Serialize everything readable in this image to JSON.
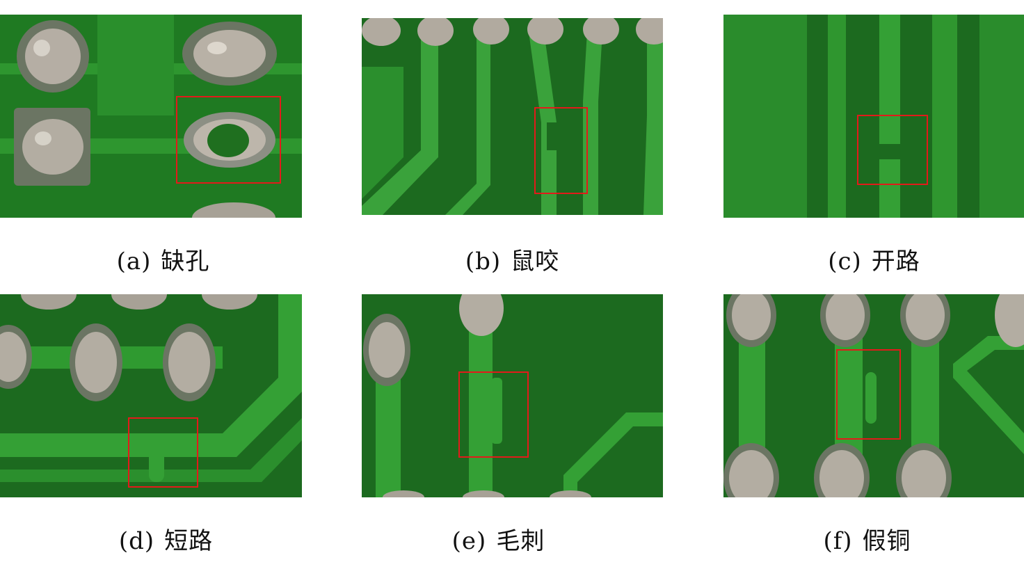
{
  "panels": [
    {
      "tag": "(a)",
      "label": "缺孔"
    },
    {
      "tag": "(b)",
      "label": "鼠咬"
    },
    {
      "tag": "(c)",
      "label": "开路"
    },
    {
      "tag": "(d)",
      "label": "短路"
    },
    {
      "tag": "(e)",
      "label": "毛刺"
    },
    {
      "tag": "(f)",
      "label": "假铜"
    }
  ],
  "colors": {
    "board_dark": "#1a6a1e",
    "board_mid": "#238a26",
    "trace": "#3aa83a",
    "pad": "#a9a39a",
    "highlight_box": "#e31a1a"
  }
}
